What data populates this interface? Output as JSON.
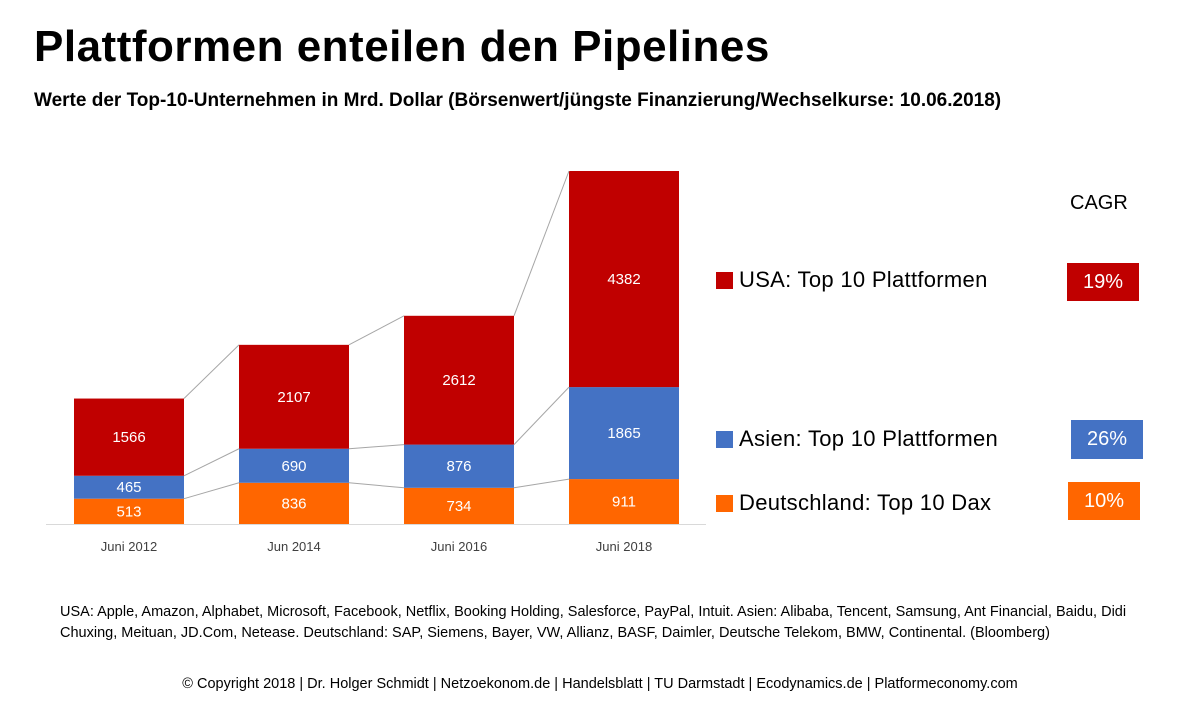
{
  "title": "Plattformen enteilen den Pipelines",
  "subtitle": "Werte der Top-10-Unternehmen in  Mrd. Dollar (Börsenwert/jüngste Finanzierung/Wechselkurse: 10.06.2018)",
  "cagr_header": "CAGR",
  "colors": {
    "usa": "#C00000",
    "asien": "#4472C4",
    "deutschland": "#FF6600"
  },
  "legend": [
    {
      "key": "usa",
      "label": "USA: Top 10 Plattformen",
      "cagr": "19%"
    },
    {
      "key": "asien",
      "label": "Asien: Top 10 Plattformen",
      "cagr": "26%"
    },
    {
      "key": "deutschland",
      "label": "Deutschland:  Top 10 Dax",
      "cagr": "10%"
    }
  ],
  "chart_data": {
    "type": "bar",
    "stacked": true,
    "categories": [
      "Juni 2012",
      "Jun 2014",
      "Juni 2016",
      "Juni 2018"
    ],
    "series": [
      {
        "name": "Deutschland:  Top 10 Dax",
        "key": "deutschland",
        "values": [
          513,
          836,
          734,
          911
        ]
      },
      {
        "name": "Asien: Top 10 Plattformen",
        "key": "asien",
        "values": [
          465,
          690,
          876,
          1865
        ]
      },
      {
        "name": "USA: Top 10 Plattformen",
        "key": "usa",
        "values": [
          1566,
          2107,
          2612,
          4382
        ]
      }
    ],
    "data_labels": true,
    "connector_lines": true
  },
  "footnote": "USA: Apple, Amazon, Alphabet, Microsoft, Facebook, Netflix, Booking Holding, Salesforce, PayPal, Intuit. Asien: Alibaba, Tencent, Samsung, Ant Financial, Baidu, Didi Chuxing,  Meituan,  JD.Com, Netease. Deutschland: SAP, Siemens, Bayer, VW, Allianz, BASF, Daimler, Deutsche Telekom, BMW, Continental. (Bloomberg)",
  "copyright": "© Copyright 2018 | Dr. Holger Schmidt   |  Netzoekonom.de  |  Handelsblatt  |  TU Darmstadt | Ecodynamics.de  |  Platformeconomy.com"
}
